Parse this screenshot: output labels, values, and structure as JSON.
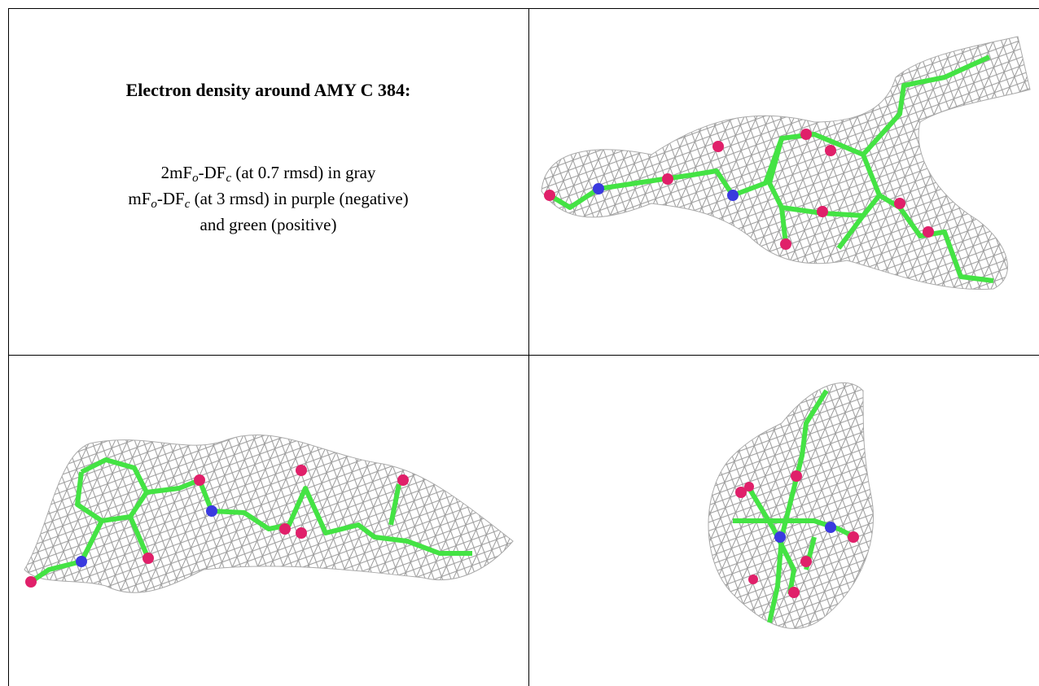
{
  "caption": {
    "title": "Electron density around AMY C 384:",
    "lines": [
      [
        "2mF",
        "o",
        "-DF",
        "c",
        " (at 0.7 rmsd) in gray"
      ],
      [
        "mF",
        "o",
        "-DF",
        "c",
        " (at 3 rmsd) in purple (negative)"
      ],
      [
        "and green (positive)"
      ]
    ]
  }
}
